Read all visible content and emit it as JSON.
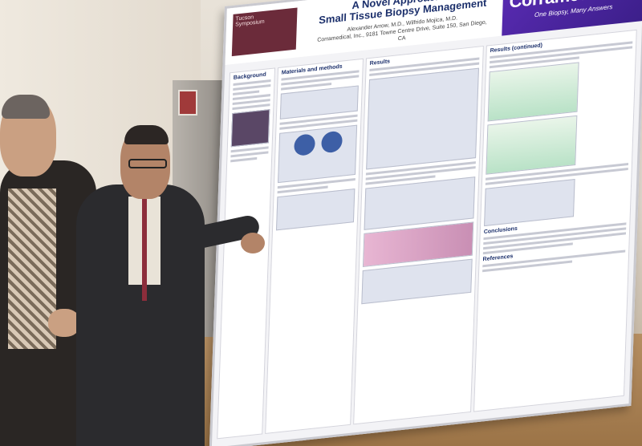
{
  "poster": {
    "symposium": [
      "Tucson",
      "Symposium"
    ],
    "title_line1": "A Novel Approach to",
    "title_line2": "Small Tissue Biopsy Management",
    "authors": "Alexander Arrow, M.D., Wilfrido Mojica, M.D.",
    "affiliation": "Corramedical, Inc., 9181 Towne Centre Drive, Suite 150, San Diego, CA",
    "brand_name": "Corramedical",
    "brand_tagline": "One Biopsy, Many Answers",
    "sections": {
      "background": "Background",
      "materials": "Materials and methods",
      "results": "Results",
      "results_continued": "Results (continued)",
      "conclusions": "Conclusions",
      "references": "References"
    }
  },
  "colors": {
    "brand_purple": "#4a25a0",
    "title_navy": "#1b2f6b"
  }
}
